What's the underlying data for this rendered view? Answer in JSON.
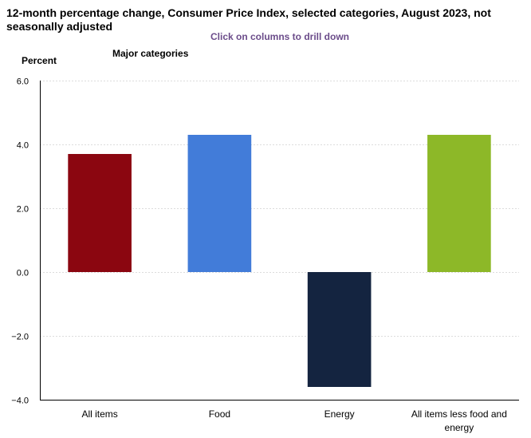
{
  "header": {
    "title": "12-month percentage change, Consumer Price Index, selected categories, August 2023, not seasonally adjusted",
    "drill_hint": "Click on columns to drill down"
  },
  "chart_data": {
    "type": "bar",
    "title": "12-month percentage change, Consumer Price Index, selected categories, August 2023, not seasonally adjusted",
    "xlabel": "",
    "ylabel": "Percent",
    "legend_label": "Major categories",
    "ylim": [
      -4.0,
      6.0
    ],
    "yticks": [
      "6.0",
      "4.0",
      "2.0",
      "0.0",
      "−2.0",
      "−4.0"
    ],
    "ytick_values": [
      6,
      4,
      2,
      0,
      -2,
      -4
    ],
    "grid": true,
    "categories": [
      [
        "All items"
      ],
      [
        "Food"
      ],
      [
        "Energy"
      ],
      [
        "All items less food and",
        "energy"
      ]
    ],
    "values": [
      3.7,
      4.3,
      -3.6,
      4.3
    ],
    "colors": [
      "#8b0610",
      "#427cd9",
      "#142440",
      "#8db828"
    ]
  }
}
